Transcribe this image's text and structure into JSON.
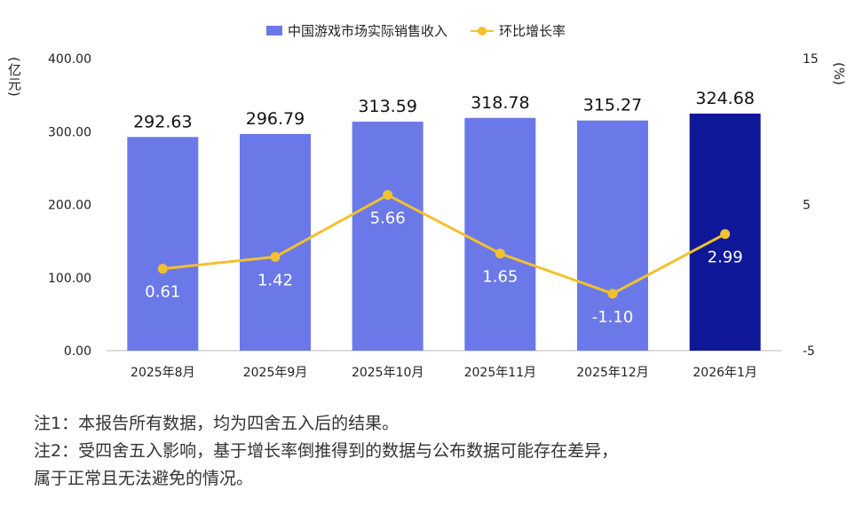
{
  "legend": {
    "bar_label": "中国游戏市场实际销售收入",
    "line_label": "环比增长率"
  },
  "units": {
    "left": "(亿元)",
    "right": "(%)"
  },
  "notes": [
    "注1：本报告所有数据，均为四舍五入后的结果。",
    "注2：受四舍五入影响，基于增长率倒推得到的数据与公布数据可能存在差异，",
    "属于正常且无法避免的情况。"
  ],
  "colors": {
    "bar": "#6b79e8",
    "bar_highlight": "#0f1899",
    "line": "#f2c12e"
  },
  "chart_data": {
    "type": "bar+line",
    "categories": [
      "2025年8月",
      "2025年9月",
      "2025年10月",
      "2025年11月",
      "2025年12月",
      "2026年1月"
    ],
    "series": [
      {
        "name": "中国游戏市场实际销售收入",
        "type": "bar",
        "axis": "left",
        "values": [
          292.63,
          296.79,
          313.59,
          318.78,
          315.27,
          324.68
        ],
        "labels": [
          "292.63",
          "296.79",
          "313.59",
          "318.78",
          "315.27",
          "324.68"
        ]
      },
      {
        "name": "环比增长率",
        "type": "line",
        "axis": "right",
        "values": [
          0.61,
          1.42,
          5.66,
          1.65,
          -1.1,
          2.99
        ],
        "labels": [
          "0.61",
          "1.42",
          "5.66",
          "1.65",
          "-1.10",
          "2.99"
        ]
      }
    ],
    "y_left": {
      "range": [
        0,
        400
      ],
      "ticks": [
        "0.00",
        "100.00",
        "200.00",
        "300.00",
        "400.00"
      ]
    },
    "y_right": {
      "range": [
        -5,
        15
      ],
      "ticks": [
        "-5",
        "5",
        "15"
      ]
    },
    "highlight_index": 5,
    "grid": false,
    "legend_position": "top"
  }
}
